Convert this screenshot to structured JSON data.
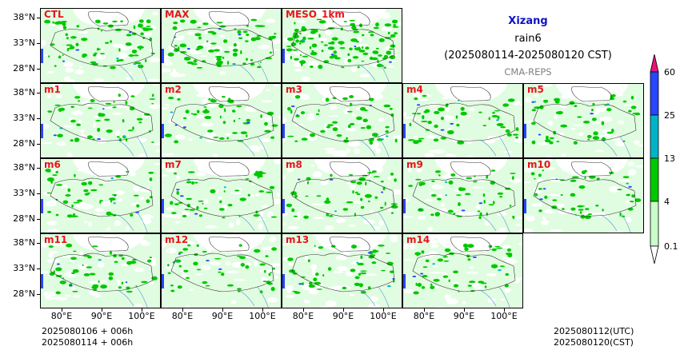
{
  "title": {
    "region": "Xizang",
    "variable": "rain6",
    "period": "(2025080114-2025080120 CST)",
    "system": "CMA-REPS"
  },
  "panels": [
    "CTL",
    "MAX",
    "MESO_1km",
    "m1",
    "m2",
    "m3",
    "m4",
    "m5",
    "m6",
    "m7",
    "m8",
    "m9",
    "m10",
    "m11",
    "m12",
    "m13",
    "m14"
  ],
  "latitude_ticks": [
    "38°N",
    "33°N",
    "28°N"
  ],
  "longitude_ticks": [
    "80°E",
    "90°E",
    "100°E"
  ],
  "footer": {
    "init_utc": "2025080106  +  006h",
    "init_cst": "2025080114  +  006h",
    "valid_utc": "2025080112(UTC)",
    "valid_cst": "2025080120(CST)"
  },
  "colorbar": {
    "levels": [
      "0.1",
      "4",
      "13",
      "25",
      "60"
    ],
    "colors": [
      "#c8fcc8",
      "#00c800",
      "#00b4c8",
      "#2846ff",
      "#e6147a"
    ]
  }
}
